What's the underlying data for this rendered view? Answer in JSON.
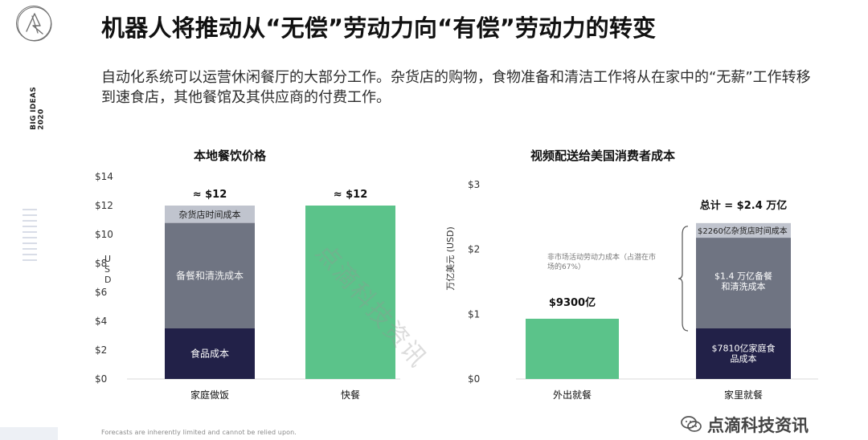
{
  "branding": {
    "side_label": "BIG IDEAS\n2020"
  },
  "header": {
    "title": "机器人将推动从“无偿”劳动力向“有偿”劳动力的转变",
    "subtitle": "自动化系统可以运营休闲餐厅的大部分工作。杂货店的购物，食物准备和清洁工作将从在家中的“无薪”工作转移到速食店，其他餐馆及其供应商的付费工作。"
  },
  "footer": {
    "note": "Forecasts are inherently limited and cannot be relied upon."
  },
  "watermarks": {
    "diagonal": "点滴科技资讯",
    "corner": "点滴科技资讯"
  },
  "colors": {
    "navy": "#222148",
    "gray_dark": "#6f7482",
    "gray_light": "#c0c4ce",
    "green": "#5bc38a",
    "axis": "#d9d9d9",
    "text": "#111111",
    "muted": "#666666"
  },
  "chart_data": [
    {
      "type": "bar",
      "title": "本地餐饮价格",
      "ylabel": "U S D",
      "ylim": [
        0,
        14
      ],
      "yticks": [
        0,
        2,
        4,
        6,
        8,
        10,
        12,
        14
      ],
      "ytick_labels": [
        "$0",
        "$2",
        "$4",
        "$6",
        "$8",
        "$10",
        "$12",
        "$14"
      ],
      "categories": [
        "家庭做饭",
        "快餐"
      ],
      "series": [
        {
          "name": "食品成本",
          "values": [
            3.5,
            null
          ],
          "label": "食品成本"
        },
        {
          "name": "备餐和清洗成本",
          "values": [
            7.3,
            null
          ],
          "label": "备餐和清洗成本"
        },
        {
          "name": "杂货店时间成本",
          "values": [
            1.2,
            null
          ],
          "label": "杂货店时间成本"
        },
        {
          "name": "快餐",
          "values": [
            null,
            12
          ],
          "label": ""
        }
      ],
      "top_labels": [
        "≈ $12",
        "≈ $12"
      ]
    },
    {
      "type": "bar",
      "title": "视频配送给美国消费者成本",
      "ylabel": "万亿美元 (USD)",
      "ylim": [
        0,
        3
      ],
      "yticks": [
        0,
        1,
        2,
        3
      ],
      "ytick_labels": [
        "$0",
        "$1",
        "$2",
        "$3"
      ],
      "categories": [
        "外出就餐",
        "家里就餐"
      ],
      "series": [
        {
          "name": "外出就餐",
          "values": [
            0.93,
            null
          ],
          "label": ""
        },
        {
          "name": "家庭食品成本",
          "values": [
            null,
            0.781
          ],
          "label": "$7810亿家庭食品成本"
        },
        {
          "name": "备餐和清洗成本",
          "values": [
            null,
            1.4
          ],
          "label": "$1.4 万亿备餐和清洗成本"
        },
        {
          "name": "杂货店时间成本",
          "values": [
            null,
            0.226
          ],
          "label": "$2260亿杂货店时间成本"
        }
      ],
      "top_labels": [
        "$9300亿",
        "总计 = $2.4 万亿"
      ],
      "annotation": "非市场活动劳动力成本（占潜在市场的67%）"
    }
  ]
}
